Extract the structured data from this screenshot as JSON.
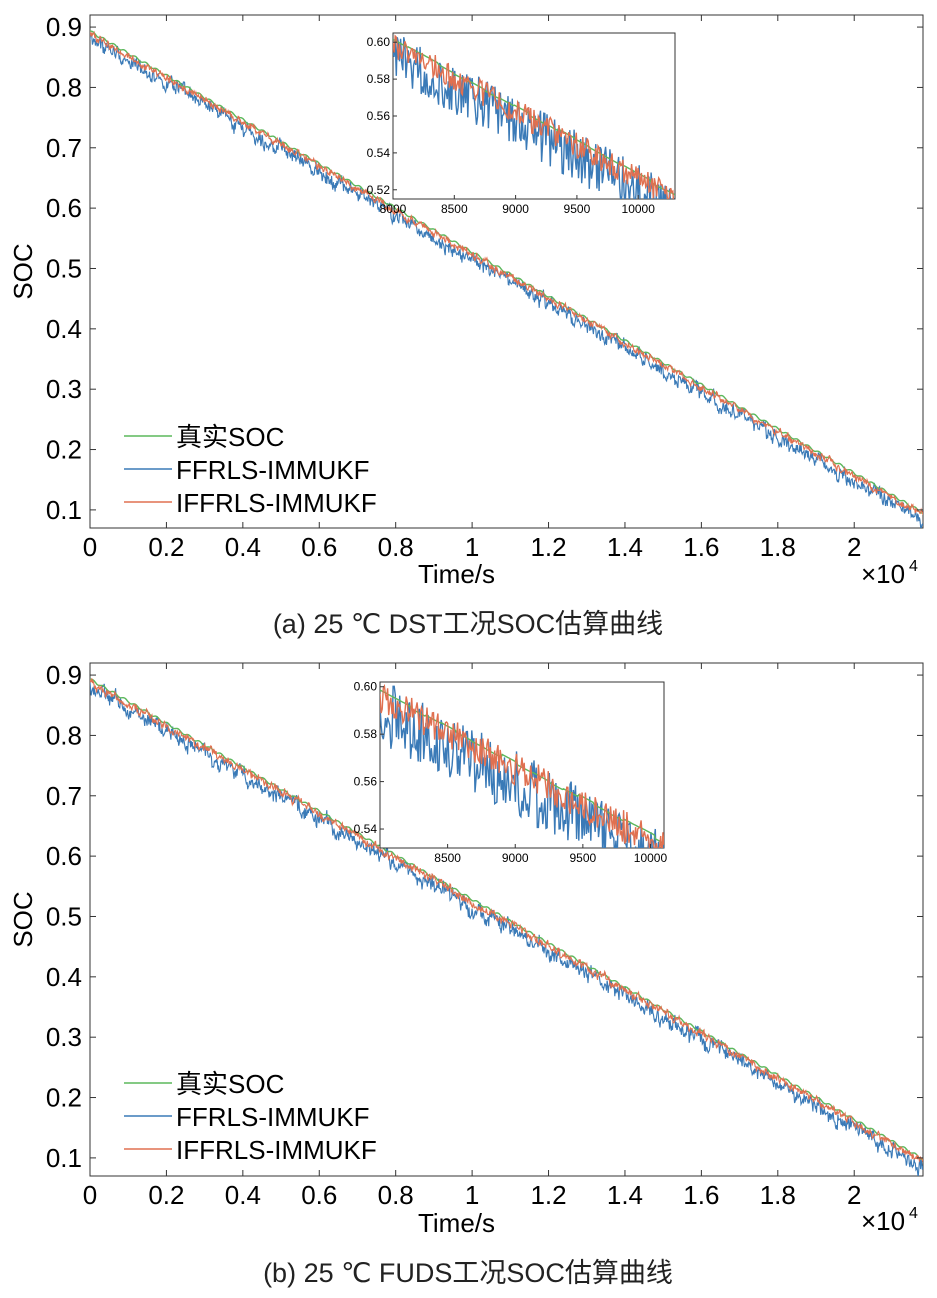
{
  "colors": {
    "true_soc": "#5cb85c",
    "ffrls": "#3a7ab7",
    "iffrls": "#e07050"
  },
  "chart_data": [
    {
      "type": "line",
      "caption": "(a) 25 ℃ DST工况SOC估算曲线",
      "xlabel": "Time/s",
      "ylabel": "SOC",
      "x_multiplier": "×10",
      "x_multiplier_exp": "4",
      "xlim": [
        0,
        21800
      ],
      "ylim": [
        0.07,
        0.92
      ],
      "xticks": [
        0,
        2000,
        4000,
        6000,
        8000,
        10000,
        12000,
        14000,
        16000,
        18000,
        20000
      ],
      "xtick_labels": [
        "0",
        "0.2",
        "0.4",
        "0.6",
        "0.8",
        "1",
        "1.2",
        "1.4",
        "1.6",
        "1.8",
        "2"
      ],
      "yticks": [
        0.1,
        0.2,
        0.3,
        0.4,
        0.5,
        0.6,
        0.7,
        0.8,
        0.9
      ],
      "ytick_labels": [
        "0.1",
        "0.2",
        "0.3",
        "0.4",
        "0.5",
        "0.6",
        "0.7",
        "0.8",
        "0.9"
      ],
      "legend": [
        "真实SOC",
        "FFRLS-IMMUKF",
        "IFFRLS-IMMUKF"
      ],
      "series": [
        {
          "name": "真实SOC",
          "start": [
            0,
            0.893
          ],
          "end": [
            21800,
            0.095
          ],
          "noise": 0.0,
          "offset": 0.0
        },
        {
          "name": "FFRLS-IMMUKF",
          "start": [
            0,
            0.885
          ],
          "end": [
            21800,
            0.085
          ],
          "noise": 0.012,
          "offset": -0.008
        },
        {
          "name": "IFFRLS-IMMUKF",
          "start": [
            0,
            0.89
          ],
          "end": [
            21800,
            0.092
          ],
          "noise": 0.006,
          "offset": -0.003
        }
      ],
      "inset": {
        "xlim": [
          8000,
          10300
        ],
        "ylim": [
          0.515,
          0.605
        ],
        "xticks": [
          8000,
          8500,
          9000,
          9500,
          10000
        ],
        "yticks": [
          0.52,
          0.54,
          0.56,
          0.58,
          0.6
        ]
      }
    },
    {
      "type": "line",
      "caption": "(b) 25 ℃ FUDS工况SOC估算曲线",
      "xlabel": "Time/s",
      "ylabel": "SOC",
      "x_multiplier": "×10",
      "x_multiplier_exp": "4",
      "xlim": [
        0,
        21800
      ],
      "ylim": [
        0.07,
        0.92
      ],
      "xticks": [
        0,
        2000,
        4000,
        6000,
        8000,
        10000,
        12000,
        14000,
        16000,
        18000,
        20000
      ],
      "xtick_labels": [
        "0",
        "0.2",
        "0.4",
        "0.6",
        "0.8",
        "1",
        "1.2",
        "1.4",
        "1.6",
        "1.8",
        "2"
      ],
      "yticks": [
        0.1,
        0.2,
        0.3,
        0.4,
        0.5,
        0.6,
        0.7,
        0.8,
        0.9
      ],
      "ytick_labels": [
        "0.1",
        "0.2",
        "0.3",
        "0.4",
        "0.5",
        "0.6",
        "0.7",
        "0.8",
        "0.9"
      ],
      "legend": [
        "真实SOC",
        "FFRLS-IMMUKF",
        "IFFRLS-IMMUKF"
      ],
      "series": [
        {
          "name": "真实SOC",
          "start": [
            0,
            0.893
          ],
          "end": [
            21800,
            0.098
          ],
          "noise": 0.0,
          "offset": 0.0
        },
        {
          "name": "FFRLS-IMMUKF",
          "start": [
            0,
            0.885
          ],
          "end": [
            21800,
            0.088
          ],
          "noise": 0.013,
          "offset": -0.009
        },
        {
          "name": "IFFRLS-IMMUKF",
          "start": [
            0,
            0.89
          ],
          "end": [
            21800,
            0.095
          ],
          "noise": 0.007,
          "offset": -0.003
        }
      ],
      "inset": {
        "xlim": [
          8000,
          10100
        ],
        "ylim": [
          0.532,
          0.602
        ],
        "xticks": [
          8500,
          9000,
          9500,
          10000
        ],
        "yticks": [
          0.54,
          0.56,
          0.58,
          0.6
        ]
      }
    }
  ]
}
